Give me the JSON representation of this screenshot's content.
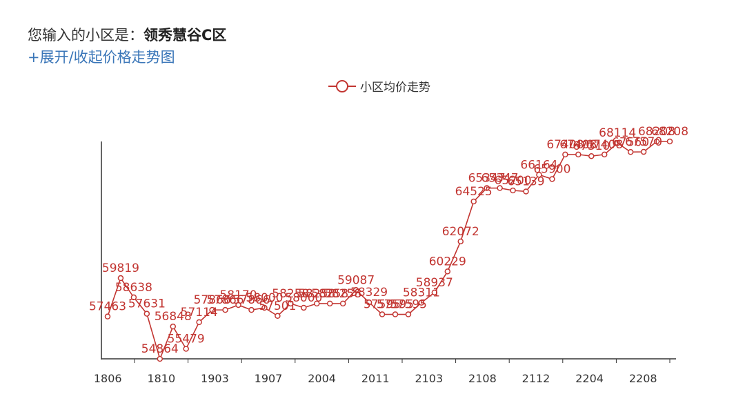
{
  "header": {
    "prompt_label": "您输入的小区是：",
    "community_name": "领秀慧谷C区",
    "toggle_link": "+展开/收起价格走势图"
  },
  "legend": {
    "label": "小区均价走势"
  },
  "chart_data": {
    "type": "line",
    "title": "",
    "xlabel": "",
    "ylabel": "",
    "color": "#c23531",
    "x_tick_labels": [
      "1806",
      "1810",
      "1903",
      "1907",
      "2004",
      "2011",
      "2103",
      "2108",
      "2112",
      "2204",
      "2208"
    ],
    "series": [
      {
        "name": "小区均价走势",
        "values": [
          57463,
          59819,
          58638,
          57631,
          54864,
          56848,
          55479,
          57114,
          57866,
          57866,
          58170,
          57866,
          58000,
          57501,
          58258,
          58000,
          58258,
          58258,
          58258,
          59087,
          58329,
          57595,
          57595,
          57595,
          58311,
          58937,
          60229,
          62072,
          64525,
          65347,
          65347,
          65200,
          65139,
          66164,
          65900,
          67408,
          67408,
          67310,
          67408,
          68114,
          67560,
          67570,
          68208,
          68208
        ]
      }
    ]
  }
}
